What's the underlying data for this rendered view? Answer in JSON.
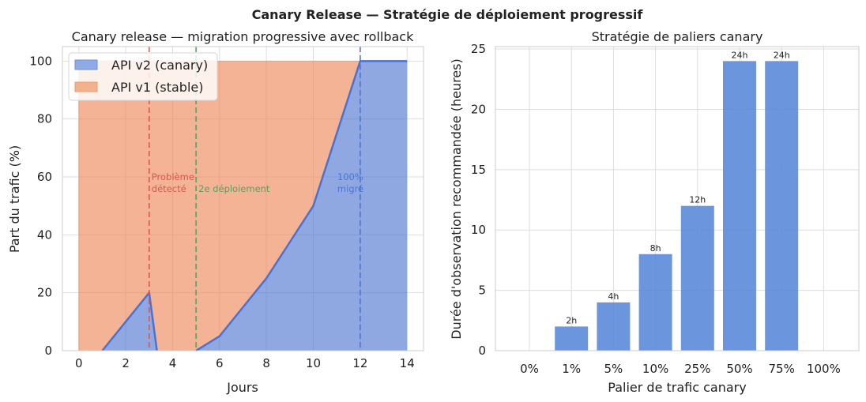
{
  "suptitle": "Canary Release — Stratégie de déploiement progressif",
  "chart_data": [
    {
      "type": "area",
      "title": "Canary release — migration progressive avec rollback",
      "xlabel": "Jours",
      "ylabel": "Part du trafic (%)",
      "xlim": [
        -0.7,
        14.7
      ],
      "ylim": [
        0,
        105
      ],
      "xticks": [
        0,
        2,
        4,
        6,
        8,
        10,
        12,
        14
      ],
      "yticks": [
        0,
        20,
        40,
        60,
        80,
        100
      ],
      "grid": true,
      "legend": "top-left",
      "series": [
        {
          "name": "API v2 (canary)",
          "color": "#4C72D0",
          "x": [
            0,
            1,
            2,
            3,
            3.33,
            4,
            5,
            6,
            7,
            8,
            9,
            10,
            11,
            12,
            13,
            14
          ],
          "y": [
            0,
            0,
            10,
            20,
            0,
            0,
            0,
            5,
            15,
            25,
            37.5,
            50,
            75,
            100,
            100,
            100
          ]
        },
        {
          "name": "API v1 (stable)",
          "color": "#EE8A5A",
          "x": [
            0,
            14
          ],
          "y": [
            100,
            100
          ]
        }
      ],
      "vlines": [
        {
          "x": 3,
          "color": "#D9534F",
          "label": "Problème\ndétecté"
        },
        {
          "x": 5,
          "color": "#4CA061",
          "label": "2e déploiement"
        },
        {
          "x": 12,
          "color": "#4C72D0",
          "label": "100%\nmigré"
        }
      ]
    },
    {
      "type": "bar",
      "title": "Stratégie de paliers canary",
      "xlabel": "Palier de trafic canary",
      "ylabel": "Durée d'observation recommandée (heures)",
      "categories": [
        "0%",
        "1%",
        "5%",
        "10%",
        "25%",
        "50%",
        "75%",
        "100%"
      ],
      "values": [
        0,
        2,
        4,
        8,
        12,
        24,
        24,
        0
      ],
      "data_labels": [
        "",
        "2h",
        "4h",
        "8h",
        "12h",
        "24h",
        "24h",
        ""
      ],
      "ylim": [
        0,
        25.2
      ],
      "yticks": [
        0,
        5,
        10,
        15,
        20,
        25
      ],
      "color": "#5B89D9",
      "grid": true
    }
  ]
}
